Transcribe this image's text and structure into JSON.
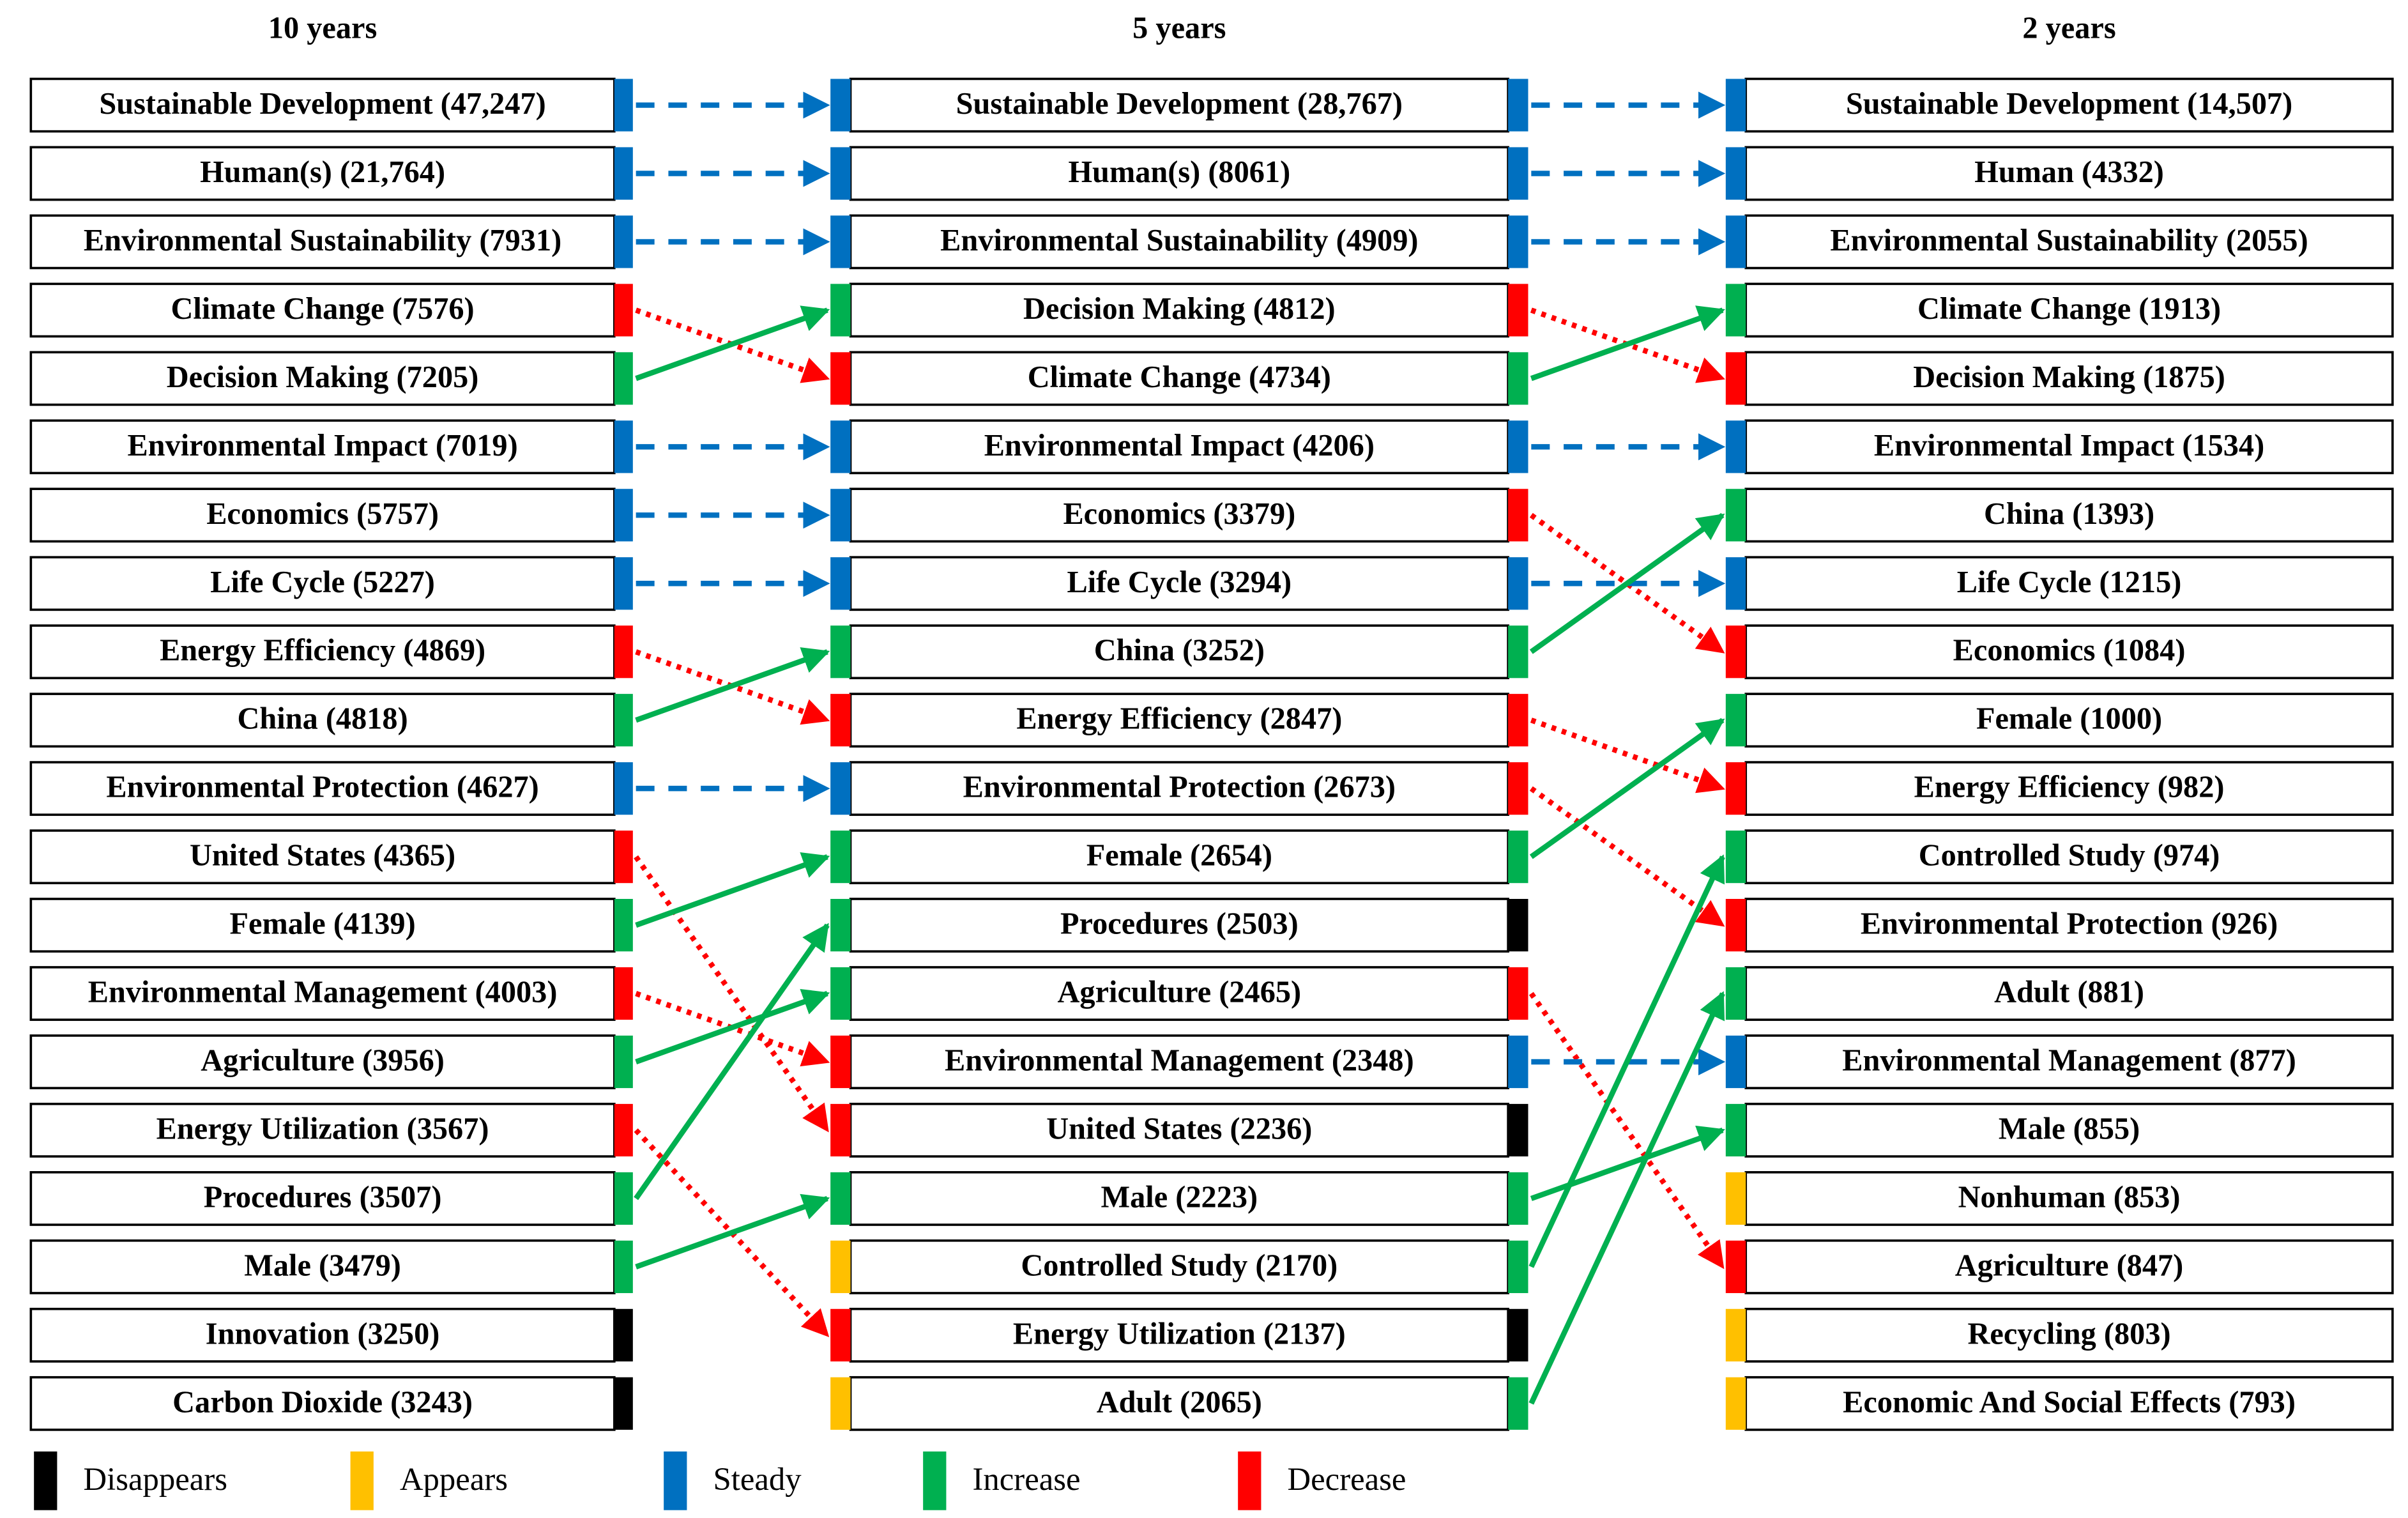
{
  "columns": [
    {
      "title": "10 years",
      "items": [
        {
          "label": "Sustainable Development (47,247)",
          "status": 2
        },
        {
          "label": "Human(s) (21,764)",
          "status": 2
        },
        {
          "label": "Environmental Sustainability (7931)",
          "status": 2
        },
        {
          "label": "Climate Change (7576)",
          "status": 4
        },
        {
          "label": "Decision Making (7205)",
          "status": 3
        },
        {
          "label": "Environmental Impact (7019)",
          "status": 2
        },
        {
          "label": "Economics (5757)",
          "status": 2
        },
        {
          "label": "Life Cycle (5227)",
          "status": 2
        },
        {
          "label": "Energy Efficiency (4869)",
          "status": 4
        },
        {
          "label": "China (4818)",
          "status": 3
        },
        {
          "label": "Environmental Protection (4627)",
          "status": 2
        },
        {
          "label": "United States (4365)",
          "status": 4
        },
        {
          "label": "Female (4139)",
          "status": 3
        },
        {
          "label": "Environmental Management (4003)",
          "status": 4
        },
        {
          "label": "Agriculture (3956)",
          "status": 3
        },
        {
          "label": "Energy Utilization (3567)",
          "status": 4
        },
        {
          "label": "Procedures (3507)",
          "status": 3
        },
        {
          "label": "Male (3479)",
          "status": 3
        },
        {
          "label": "Innovation (3250)",
          "status": 0
        },
        {
          "label": "Carbon Dioxide (3243)",
          "status": 0
        }
      ]
    },
    {
      "title": "5 years",
      "items": [
        {
          "label": "Sustainable Development (28,767)",
          "status": 2
        },
        {
          "label": "Human(s) (8061)",
          "status": 2
        },
        {
          "label": "Environmental Sustainability (4909)",
          "status": 2
        },
        {
          "label": "Decision Making (4812)",
          "status": 4
        },
        {
          "label": "Climate Change (4734)",
          "status": 3
        },
        {
          "label": "Environmental Impact (4206)",
          "status": 2
        },
        {
          "label": "Economics (3379)",
          "status": 4
        },
        {
          "label": "Life Cycle (3294)",
          "status": 2
        },
        {
          "label": "China (3252)",
          "status": 3
        },
        {
          "label": "Energy Efficiency (2847)",
          "status": 4
        },
        {
          "label": "Environmental Protection (2673)",
          "status": 4
        },
        {
          "label": "Female (2654)",
          "status": 3
        },
        {
          "label": "Procedures (2503)",
          "status": 0
        },
        {
          "label": "Agriculture (2465)",
          "status": 4
        },
        {
          "label": "Environmental Management (2348)",
          "status": 2
        },
        {
          "label": "United States (2236)",
          "status": 0
        },
        {
          "label": "Male (2223)",
          "status": 3
        },
        {
          "label": "Controlled Study (2170)",
          "status": 3
        },
        {
          "label": "Energy Utilization (2137)",
          "status": 0
        },
        {
          "label": "Adult (2065)",
          "status": 3
        }
      ]
    },
    {
      "title": "2 years",
      "items": [
        {
          "label": "Sustainable Development (14,507)"
        },
        {
          "label": "Human (4332)"
        },
        {
          "label": "Environmental Sustainability (2055)"
        },
        {
          "label": "Climate Change (1913)"
        },
        {
          "label": "Decision Making (1875)"
        },
        {
          "label": "Environmental Impact (1534)"
        },
        {
          "label": "China (1393)"
        },
        {
          "label": "Life Cycle (1215)"
        },
        {
          "label": "Economics (1084)"
        },
        {
          "label": "Female (1000)"
        },
        {
          "label": "Energy Efficiency (982)"
        },
        {
          "label": "Controlled Study (974)"
        },
        {
          "label": "Environmental Protection (926)"
        },
        {
          "label": "Adult (881)"
        },
        {
          "label": "Environmental Management (877)"
        },
        {
          "label": "Male (855)"
        },
        {
          "label": "Nonhuman (853)"
        },
        {
          "label": "Agriculture (847)"
        },
        {
          "label": "Recycling (803)"
        },
        {
          "label": "Economic And Social Effects (793)"
        }
      ]
    }
  ],
  "links": [
    [
      [
        0,
        0
      ],
      [
        1,
        0
      ]
    ],
    [
      [
        0,
        1
      ],
      [
        1,
        1
      ]
    ],
    [
      [
        0,
        2
      ],
      [
        1,
        2
      ]
    ],
    [
      [
        0,
        3
      ],
      [
        1,
        4
      ]
    ],
    [
      [
        0,
        4
      ],
      [
        1,
        3
      ]
    ],
    [
      [
        0,
        5
      ],
      [
        1,
        5
      ]
    ],
    [
      [
        0,
        6
      ],
      [
        1,
        6
      ]
    ],
    [
      [
        0,
        7
      ],
      [
        1,
        7
      ]
    ],
    [
      [
        0,
        8
      ],
      [
        1,
        9
      ]
    ],
    [
      [
        0,
        9
      ],
      [
        1,
        8
      ]
    ],
    [
      [
        0,
        10
      ],
      [
        1,
        10
      ]
    ],
    [
      [
        0,
        11
      ],
      [
        1,
        15
      ]
    ],
    [
      [
        0,
        12
      ],
      [
        1,
        11
      ]
    ],
    [
      [
        0,
        13
      ],
      [
        1,
        14
      ]
    ],
    [
      [
        0,
        14
      ],
      [
        1,
        13
      ]
    ],
    [
      [
        0,
        15
      ],
      [
        1,
        18
      ]
    ],
    [
      [
        0,
        16
      ],
      [
        1,
        12
      ]
    ],
    [
      [
        0,
        17
      ],
      [
        1,
        16
      ]
    ],
    [
      [
        1,
        0
      ],
      [
        2,
        0
      ]
    ],
    [
      [
        1,
        1
      ],
      [
        2,
        1
      ]
    ],
    [
      [
        1,
        2
      ],
      [
        2,
        2
      ]
    ],
    [
      [
        1,
        3
      ],
      [
        2,
        4
      ]
    ],
    [
      [
        1,
        4
      ],
      [
        2,
        3
      ]
    ],
    [
      [
        1,
        5
      ],
      [
        2,
        5
      ]
    ],
    [
      [
        1,
        6
      ],
      [
        2,
        8
      ]
    ],
    [
      [
        1,
        7
      ],
      [
        2,
        7
      ]
    ],
    [
      [
        1,
        8
      ],
      [
        2,
        6
      ]
    ],
    [
      [
        1,
        9
      ],
      [
        2,
        10
      ]
    ],
    [
      [
        1,
        10
      ],
      [
        2,
        12
      ]
    ],
    [
      [
        1,
        11
      ],
      [
        2,
        9
      ]
    ],
    [
      [
        1,
        13
      ],
      [
        2,
        17
      ]
    ],
    [
      [
        1,
        14
      ],
      [
        2,
        14
      ]
    ],
    [
      [
        1,
        16
      ],
      [
        2,
        15
      ]
    ],
    [
      [
        1,
        17
      ],
      [
        2,
        11
      ]
    ],
    [
      [
        1,
        19
      ],
      [
        2,
        13
      ]
    ]
  ],
  "legend": [
    {
      "label": "Disappears",
      "color": "#000000"
    },
    {
      "label": "Appears",
      "color": "#ffc000"
    },
    {
      "label": "Steady",
      "color": "#0070c0",
      "dash": "12 9"
    },
    {
      "label": "Increase",
      "color": "#00b050",
      "dash": "none"
    },
    {
      "label": "Decrease",
      "color": "#ff0000",
      "dash": "3 4"
    }
  ]
}
